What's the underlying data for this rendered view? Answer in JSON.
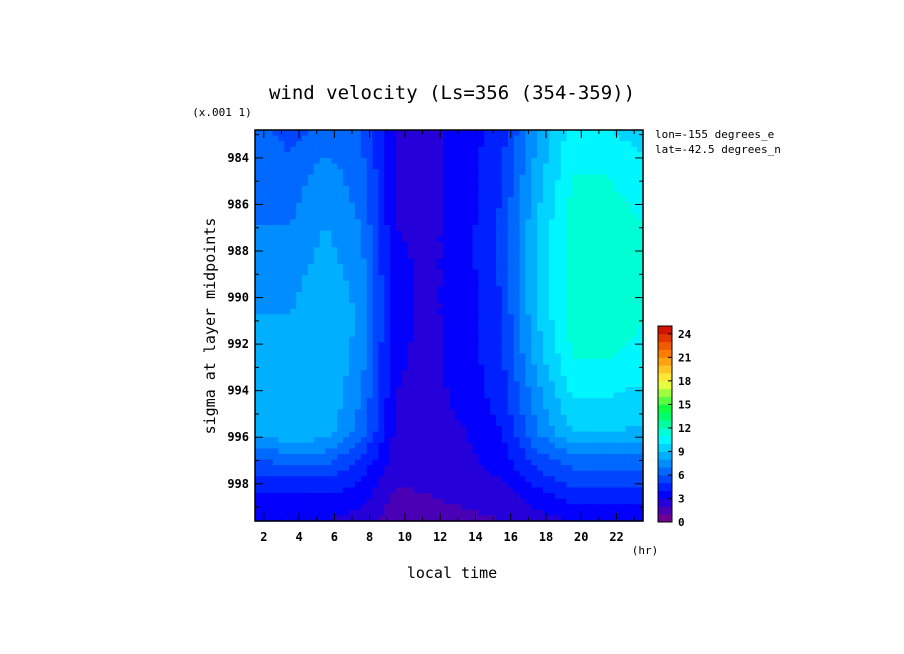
{
  "chart_data": {
    "type": "heatmap",
    "title": "wind velocity (Ls=356 (354-359))",
    "xlabel": "local time",
    "x_unit": "(hr)",
    "ylabel": "sigma at layer midpoints",
    "y_scale_note": "(x.001 1)",
    "annotations": [
      "lon=-155 degrees_e",
      "lat=-42.5 degrees_n"
    ],
    "x": [
      1.5,
      3.5,
      5.5,
      7.5,
      9.5,
      11.5,
      13.5,
      15.5,
      17.5,
      19.5,
      21.5,
      23.5
    ],
    "y": [
      982.8,
      984.8,
      986.9,
      988.8,
      990.8,
      992.6,
      994.4,
      995.8,
      996.9,
      997.8,
      998.5,
      999.1,
      999.6
    ],
    "x_ticks": [
      "2",
      "4",
      "6",
      "8",
      "10",
      "12",
      "14",
      "16",
      "18",
      "20",
      "22"
    ],
    "y_ticks": [
      "984",
      "986",
      "988",
      "990",
      "992",
      "994",
      "996",
      "998"
    ],
    "xlim": [
      1.5,
      23.5
    ],
    "ylim": [
      999.6,
      982.8
    ],
    "values": [
      [
        6.5,
        5.5,
        6.5,
        6,
        3,
        2.8,
        3.5,
        4.5,
        8,
        10.5,
        10,
        9.5
      ],
      [
        7,
        6.5,
        7.5,
        6.5,
        3,
        2.8,
        3.5,
        5,
        8.5,
        11,
        11,
        10.5
      ],
      [
        7,
        7,
        8,
        7,
        3,
        2.8,
        3.6,
        5.2,
        9,
        11.5,
        11.5,
        11
      ],
      [
        7.5,
        7.5,
        8.5,
        7.5,
        3.2,
        2.8,
        3.6,
        5.2,
        9,
        11.5,
        11.5,
        11
      ],
      [
        8,
        8,
        9,
        7.8,
        3.2,
        2.8,
        3.6,
        5,
        9,
        11.5,
        11.5,
        11
      ],
      [
        8.5,
        8.5,
        9,
        7.5,
        3.1,
        2.8,
        3.5,
        4.8,
        8.5,
        11,
        11,
        10.8
      ],
      [
        8.5,
        8.8,
        9,
        7,
        3,
        2.7,
        3.3,
        4.5,
        7.5,
        10,
        10,
        9.5
      ],
      [
        8.5,
        8.8,
        8.5,
        6.5,
        2.8,
        2.6,
        3,
        4,
        7,
        9,
        9,
        8.8
      ],
      [
        6,
        6.5,
        6.5,
        5,
        2.5,
        2.4,
        2.8,
        3.5,
        5.5,
        6.5,
        6.5,
        6.5
      ],
      [
        5,
        5,
        5,
        4,
        2.2,
        2.2,
        2.6,
        3,
        4.5,
        5.5,
        5.5,
        5.5
      ],
      [
        4,
        4,
        4,
        3.5,
        1.8,
        2,
        2.3,
        2.6,
        3.5,
        4.5,
        4.5,
        4.5
      ],
      [
        3.5,
        3.5,
        3.5,
        3,
        1.5,
        1.8,
        2,
        2.2,
        3,
        3.5,
        3.5,
        3.5
      ],
      [
        3,
        3,
        3,
        2.5,
        1.3,
        1.5,
        1.8,
        2,
        2.6,
        3,
        3,
        3
      ]
    ],
    "colorbar": {
      "min": 0,
      "max": 25,
      "step": 1,
      "tick_labels": [
        "0",
        "3",
        "6",
        "9",
        "12",
        "15",
        "18",
        "21",
        "24"
      ]
    },
    "colormap_stops": [
      "#800080",
      "#0000ff",
      "#0080ff",
      "#00ffff",
      "#00ff40",
      "#ffff40",
      "#ff8000",
      "#cc0000"
    ]
  }
}
